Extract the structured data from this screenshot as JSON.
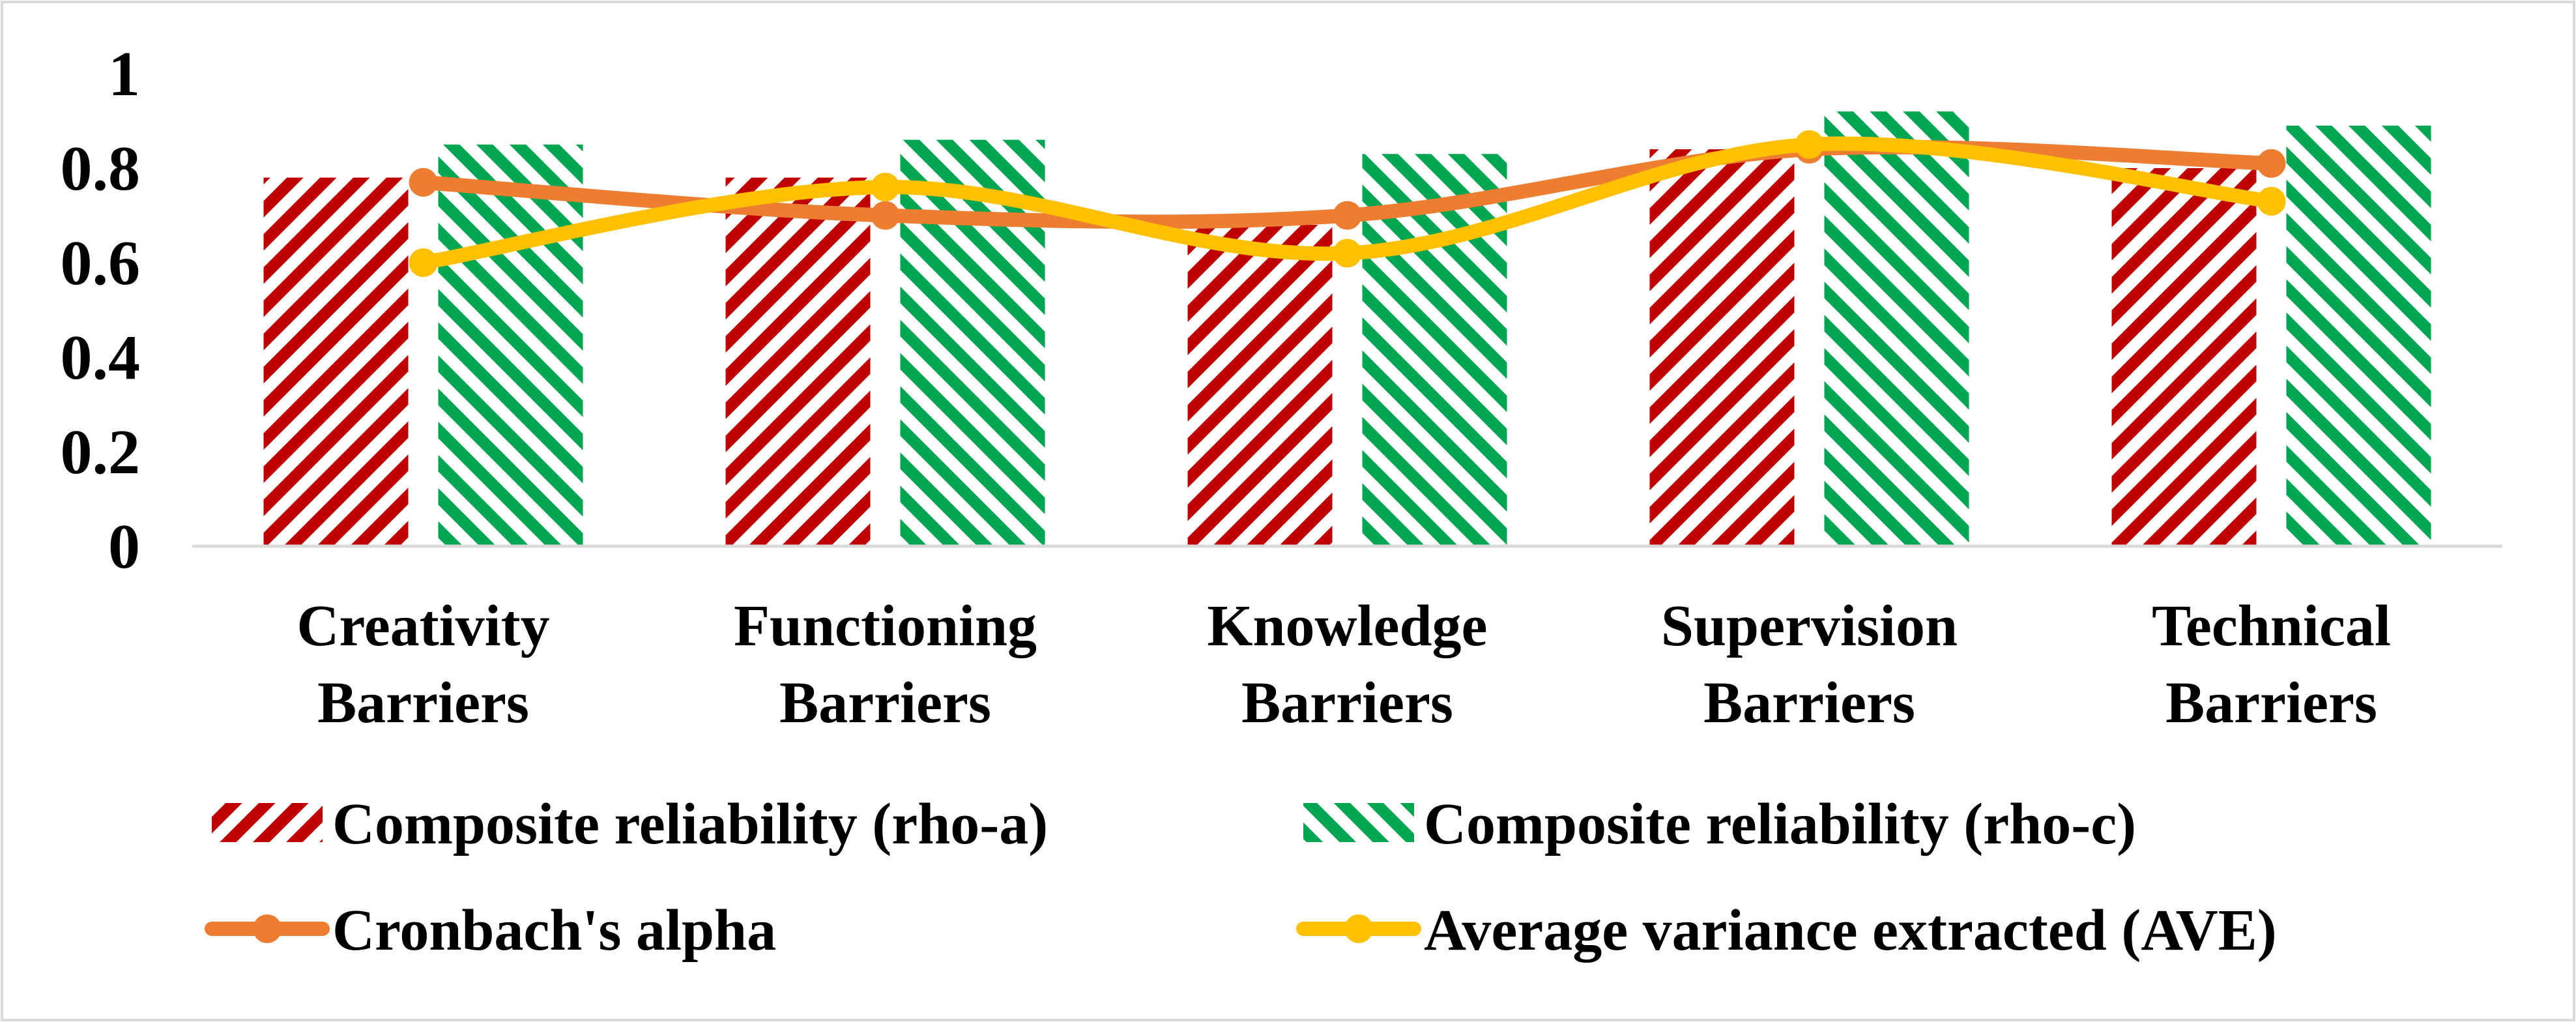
{
  "chart_data": {
    "type": "bar",
    "title": "",
    "xlabel": "",
    "ylabel": "",
    "ylim": [
      0,
      1
    ],
    "yticks": [
      "0",
      "0.2",
      "0.4",
      "0.6",
      "0.8",
      "1"
    ],
    "categories": [
      [
        "Creativity",
        "Barriers"
      ],
      [
        "Functioning",
        "Barriers"
      ],
      [
        "Knowledge",
        "Barriers"
      ],
      [
        "Supervision",
        "Barriers"
      ],
      [
        "Technical",
        "Barriers"
      ]
    ],
    "bar_series": [
      {
        "name": "Composite reliability (rho-a)",
        "color": "#c00000",
        "values": [
          0.78,
          0.78,
          0.68,
          0.84,
          0.8
        ]
      },
      {
        "name": "Composite reliability (rho-c)",
        "color": "#00a651",
        "values": [
          0.85,
          0.86,
          0.83,
          0.92,
          0.89
        ]
      }
    ],
    "line_series": [
      {
        "name": "Cronbach's alpha",
        "color": "#ed7d31",
        "values": [
          0.77,
          0.7,
          0.7,
          0.84,
          0.81
        ]
      },
      {
        "name": "Average variance extracted (AVE)",
        "color": "#ffc000",
        "values": [
          0.6,
          0.76,
          0.62,
          0.85,
          0.73
        ]
      }
    ],
    "legend": {
      "position": "bottom",
      "items": [
        "Composite reliability (rho-a)",
        "Composite reliability (rho-c)",
        "Cronbach's alpha",
        "Average variance extracted (AVE)"
      ]
    },
    "grid": false
  }
}
